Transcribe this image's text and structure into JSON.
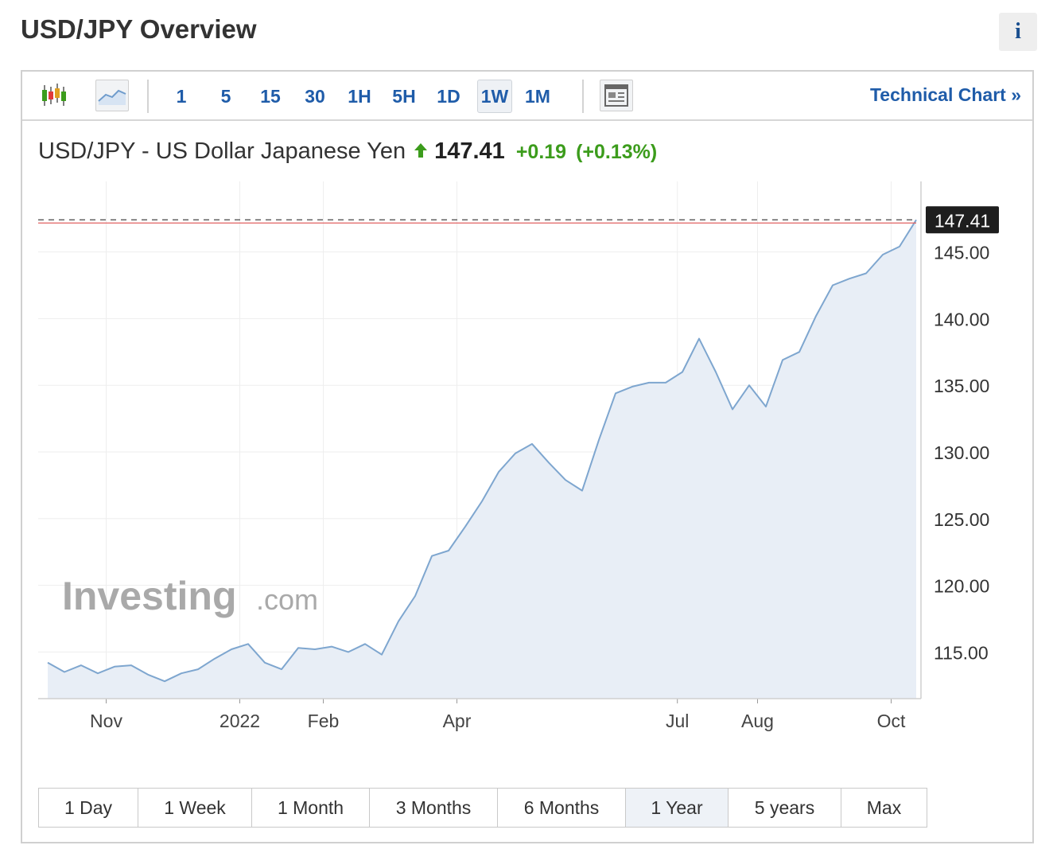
{
  "page": {
    "title": "USD/JPY Overview",
    "info_label": "i"
  },
  "toolbar": {
    "intervals": [
      "1",
      "5",
      "15",
      "30",
      "1H",
      "5H",
      "1D",
      "1W",
      "1M"
    ],
    "active_interval": "1W",
    "technical_link": "Technical Chart »"
  },
  "quote": {
    "name": "USD/JPY - US Dollar Japanese Yen",
    "price": "147.41",
    "change": "+0.19",
    "change_pct": "(+0.13%)",
    "direction": "up",
    "up_color": "#3c9c1c"
  },
  "watermark": {
    "brand": "Investing",
    "suffix": ".com"
  },
  "range_buttons": [
    "1 Day",
    "1 Week",
    "1 Month",
    "3 Months",
    "6 Months",
    "1 Year",
    "5 years",
    "Max"
  ],
  "active_range": "1 Year",
  "chart_data": {
    "type": "area",
    "title": "",
    "xlabel": "",
    "ylabel": "",
    "ylim": [
      111.5,
      148.5
    ],
    "y_ticks": [
      115,
      120,
      125,
      130,
      135,
      140,
      145
    ],
    "y_tick_labels": [
      "115.00",
      "120.00",
      "125.00",
      "130.00",
      "135.00",
      "140.00",
      "145.00"
    ],
    "x_ticks": [
      {
        "label": "Nov",
        "index": 3.5
      },
      {
        "label": "2022",
        "index": 11.5
      },
      {
        "label": "Feb",
        "index": 16.5
      },
      {
        "label": "Apr",
        "index": 24.5
      },
      {
        "label": "Jul",
        "index": 37.7
      },
      {
        "label": "Aug",
        "index": 42.5
      },
      {
        "label": "Oct",
        "index": 50.5
      }
    ],
    "grid": true,
    "last_value_label": "147.41",
    "line_color": "#7ea6cf",
    "fill_color": "#e8eef6",
    "last_line_color": "#e06060",
    "series": [
      {
        "values": [
          114.2,
          113.5,
          114.0,
          113.4,
          113.9,
          114.0,
          113.3,
          112.8,
          113.4,
          113.7,
          114.5,
          115.2,
          115.6,
          114.2,
          113.7,
          115.3,
          115.2,
          115.4,
          115.0,
          115.6,
          114.8,
          117.3,
          119.2,
          122.2,
          122.6,
          124.4,
          126.3,
          128.5,
          129.9,
          130.6,
          129.2,
          127.9,
          127.1,
          130.9,
          134.4,
          134.9,
          135.2,
          135.2,
          136.0,
          138.5,
          136.0,
          133.2,
          135.0,
          133.4,
          136.9,
          137.5,
          140.2,
          142.5,
          143.0,
          143.4,
          144.8,
          145.4,
          147.41
        ]
      }
    ]
  }
}
